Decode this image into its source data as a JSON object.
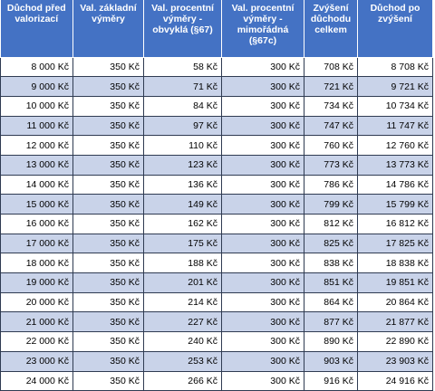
{
  "headers": [
    "Důchod před valorizací",
    "Val. základní výměry",
    "Val. procentní výměry - obvyklá (§67)",
    "Val. procentní výměry - mimořádná (§67c)",
    "Zvýšení důchodu celkem",
    "Důchod po zvýšení"
  ],
  "rows": [
    [
      "8 000 Kč",
      "350 Kč",
      "58 Kč",
      "300 Kč",
      "708 Kč",
      "8 708 Kč"
    ],
    [
      "9 000 Kč",
      "350 Kč",
      "71 Kč",
      "300 Kč",
      "721 Kč",
      "9 721 Kč"
    ],
    [
      "10 000 Kč",
      "350 Kč",
      "84 Kč",
      "300 Kč",
      "734 Kč",
      "10 734 Kč"
    ],
    [
      "11 000 Kč",
      "350 Kč",
      "97 Kč",
      "300 Kč",
      "747 Kč",
      "11 747 Kč"
    ],
    [
      "12 000 Kč",
      "350 Kč",
      "110 Kč",
      "300 Kč",
      "760 Kč",
      "12 760 Kč"
    ],
    [
      "13 000 Kč",
      "350 Kč",
      "123 Kč",
      "300 Kč",
      "773 Kč",
      "13 773 Kč"
    ],
    [
      "14 000 Kč",
      "350 Kč",
      "136 Kč",
      "300 Kč",
      "786 Kč",
      "14 786 Kč"
    ],
    [
      "15 000 Kč",
      "350 Kč",
      "149 Kč",
      "300 Kč",
      "799 Kč",
      "15 799 Kč"
    ],
    [
      "16 000 Kč",
      "350 Kč",
      "162 Kč",
      "300 Kč",
      "812 Kč",
      "16 812 Kč"
    ],
    [
      "17 000 Kč",
      "350 Kč",
      "175 Kč",
      "300 Kč",
      "825 Kč",
      "17 825 Kč"
    ],
    [
      "18 000 Kč",
      "350 Kč",
      "188 Kč",
      "300 Kč",
      "838 Kč",
      "18 838 Kč"
    ],
    [
      "19 000 Kč",
      "350 Kč",
      "201 Kč",
      "300 Kč",
      "851 Kč",
      "19 851 Kč"
    ],
    [
      "20 000 Kč",
      "350 Kč",
      "214 Kč",
      "300 Kč",
      "864 Kč",
      "20 864 Kč"
    ],
    [
      "21 000 Kč",
      "350 Kč",
      "227 Kč",
      "300 Kč",
      "877 Kč",
      "21 877 Kč"
    ],
    [
      "22 000 Kč",
      "350 Kč",
      "240 Kč",
      "300 Kč",
      "890 Kč",
      "22 890 Kč"
    ],
    [
      "23 000 Kč",
      "350 Kč",
      "253 Kč",
      "300 Kč",
      "903 Kč",
      "23 903 Kč"
    ],
    [
      "24 000 Kč",
      "350 Kč",
      "266 Kč",
      "300 Kč",
      "916 Kč",
      "24 916 Kč"
    ]
  ],
  "colors": {
    "header_bg": "#4472c4",
    "header_text": "#ffffff",
    "band_row": "#c9d3e9",
    "plain_row": "#ffffff"
  }
}
